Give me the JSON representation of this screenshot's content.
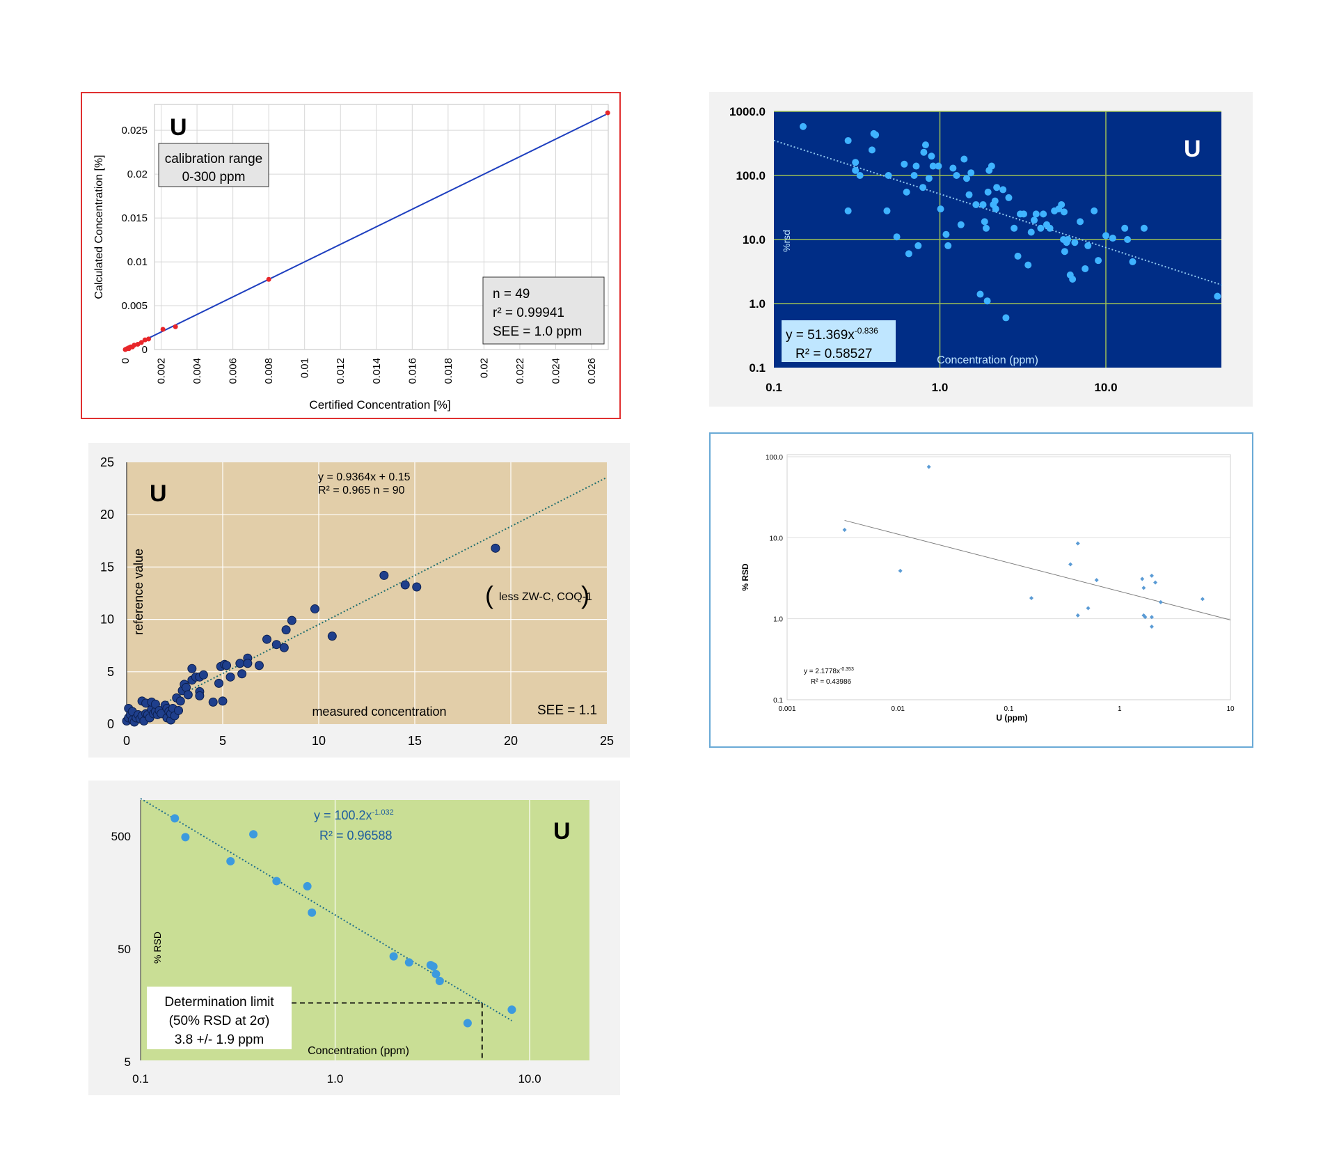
{
  "chart_data": [
    {
      "id": "calibration",
      "type": "scatter",
      "element": "U",
      "xlabel": "Certified Concentration [%]",
      "ylabel": "Calculated Concentration [%]",
      "xlim": [
        0,
        0.027
      ],
      "ylim": [
        0,
        0.027
      ],
      "x_ticks": [
        "0",
        "0.002",
        "0.004",
        "0.006",
        "0.008",
        "0.01",
        "0.012",
        "0.014",
        "0.016",
        "0.018",
        "0.02",
        "0.022",
        "0.024",
        "0.026"
      ],
      "y_ticks": [
        "0",
        "0.005",
        "0.01",
        "0.015",
        "0.02",
        "0.025"
      ],
      "annotation_range": [
        "calibration range",
        "0-300 ppm"
      ],
      "stats": [
        "n = 49",
        "r² = 0.99941",
        "SEE = 1.0 ppm"
      ],
      "line": [
        [
          0,
          0
        ],
        [
          0.0268,
          0.0268
        ]
      ],
      "points": [
        [
          0.0,
          0.0
        ],
        [
          0.0001,
          0.0001
        ],
        [
          0.0002,
          0.0001
        ],
        [
          0.0002,
          0.0002
        ],
        [
          0.0003,
          0.0003
        ],
        [
          0.0004,
          0.0003
        ],
        [
          0.0005,
          0.0005
        ],
        [
          0.0007,
          0.0006
        ],
        [
          0.0009,
          0.0008
        ],
        [
          0.0011,
          0.0011
        ],
        [
          0.0013,
          0.0012
        ],
        [
          0.0021,
          0.0023
        ],
        [
          0.0028,
          0.0026
        ],
        [
          0.008,
          0.008
        ],
        [
          0.0269,
          0.027
        ]
      ],
      "colors": {
        "points": "#e8262a",
        "line": "#1e3fbf",
        "border": "#e03030"
      }
    },
    {
      "id": "rsd-blue",
      "type": "scatter",
      "element": "U",
      "xlabel": "Concentration (ppm)",
      "ylabel": "%rsd",
      "x_scale": "log",
      "y_scale": "log",
      "xlim": [
        0.1,
        50
      ],
      "ylim": [
        0.1,
        1000
      ],
      "x_ticks": [
        "0.1",
        "1.0",
        "10.0"
      ],
      "y_ticks": [
        "0.1",
        "1.0",
        "10.0",
        "100.0",
        "1000.0"
      ],
      "trend": {
        "a": 51.369,
        "b": -0.836
      },
      "equation_main": "y = 51.369x",
      "equation_exp": "-0.836",
      "r2": "R² = 0.58527",
      "points": [
        [
          0.15,
          580
        ],
        [
          0.28,
          350
        ],
        [
          0.28,
          28
        ],
        [
          0.31,
          160
        ],
        [
          0.31,
          120
        ],
        [
          0.33,
          100
        ],
        [
          0.39,
          250
        ],
        [
          0.4,
          450
        ],
        [
          0.41,
          430
        ],
        [
          0.48,
          28
        ],
        [
          0.49,
          100
        ],
        [
          0.55,
          11
        ],
        [
          0.61,
          150
        ],
        [
          0.63,
          55
        ],
        [
          0.65,
          6
        ],
        [
          0.7,
          100
        ],
        [
          0.72,
          140
        ],
        [
          0.74,
          8
        ],
        [
          0.79,
          65
        ],
        [
          0.8,
          230
        ],
        [
          0.82,
          300
        ],
        [
          0.86,
          90
        ],
        [
          0.89,
          200
        ],
        [
          0.91,
          140
        ],
        [
          0.98,
          140
        ],
        [
          1.01,
          30
        ],
        [
          1.09,
          12
        ],
        [
          1.12,
          8
        ],
        [
          1.2,
          130
        ],
        [
          1.26,
          100
        ],
        [
          1.34,
          17
        ],
        [
          1.4,
          180
        ],
        [
          1.45,
          90
        ],
        [
          1.5,
          50
        ],
        [
          1.54,
          110
        ],
        [
          1.65,
          35
        ],
        [
          1.75,
          1.4
        ],
        [
          1.82,
          35
        ],
        [
          1.86,
          19
        ],
        [
          1.9,
          15
        ],
        [
          1.93,
          1.1
        ],
        [
          1.95,
          55
        ],
        [
          1.98,
          120
        ],
        [
          2.05,
          140
        ],
        [
          2.1,
          35
        ],
        [
          2.15,
          40
        ],
        [
          2.17,
          30
        ],
        [
          2.2,
          65
        ],
        [
          2.4,
          60
        ],
        [
          2.5,
          0.6
        ],
        [
          2.6,
          45
        ],
        [
          2.8,
          15
        ],
        [
          2.95,
          5.5
        ],
        [
          3.05,
          25
        ],
        [
          3.2,
          25
        ],
        [
          3.4,
          4
        ],
        [
          3.55,
          13
        ],
        [
          3.7,
          20
        ],
        [
          3.8,
          25
        ],
        [
          4.05,
          15
        ],
        [
          4.2,
          25
        ],
        [
          4.4,
          17
        ],
        [
          4.6,
          15
        ],
        [
          4.9,
          28
        ],
        [
          5.2,
          30
        ],
        [
          5.4,
          35
        ],
        [
          5.55,
          10
        ],
        [
          5.6,
          27
        ],
        [
          5.65,
          6.5
        ],
        [
          5.8,
          9
        ],
        [
          5.9,
          10
        ],
        [
          6.1,
          2.8
        ],
        [
          6.3,
          2.4
        ],
        [
          6.5,
          9
        ],
        [
          7.0,
          19
        ],
        [
          7.5,
          3.5
        ],
        [
          7.8,
          8
        ],
        [
          8.5,
          28
        ],
        [
          9.0,
          4.7
        ],
        [
          10.0,
          11.5
        ],
        [
          11.0,
          10.5
        ],
        [
          13.0,
          15
        ],
        [
          13.5,
          10
        ],
        [
          14.5,
          4.5
        ],
        [
          17.0,
          15
        ],
        [
          47.0,
          1.3
        ]
      ],
      "colors": {
        "background": "#002d86",
        "points": "#3fb3ff",
        "grid": "#9cbe55",
        "trend": "#8fc8f0",
        "label_box": "#bfe6ff"
      }
    },
    {
      "id": "ref-vs-measured",
      "type": "scatter",
      "element": "U",
      "xlabel": "measured concentration",
      "ylabel": "reference value",
      "xlim": [
        0,
        25
      ],
      "ylim": [
        0,
        25
      ],
      "x_ticks": [
        "0",
        "5",
        "10",
        "15",
        "20",
        "25"
      ],
      "y_ticks": [
        "0",
        "5",
        "10",
        "15",
        "20",
        "25"
      ],
      "trend": {
        "slope": 0.9364,
        "intercept": 0.15
      },
      "equation": "y = 0.9364x + 0.15",
      "r2_n": "R² = 0.965   n = 90",
      "note": "less ZW-C, COQ-1",
      "see": "SEE = 1.1",
      "points": [
        [
          0.0,
          0.3
        ],
        [
          0.1,
          0.6
        ],
        [
          0.1,
          1.5
        ],
        [
          0.2,
          0.9
        ],
        [
          0.3,
          0.4
        ],
        [
          0.3,
          1.2
        ],
        [
          0.4,
          0.2
        ],
        [
          0.5,
          0.6
        ],
        [
          0.6,
          0.9
        ],
        [
          0.7,
          0.5
        ],
        [
          0.8,
          0.8
        ],
        [
          0.8,
          2.2
        ],
        [
          0.9,
          0.3
        ],
        [
          1.0,
          1.0
        ],
        [
          1.0,
          2.0
        ],
        [
          1.1,
          0.9
        ],
        [
          1.2,
          0.6
        ],
        [
          1.3,
          1.4
        ],
        [
          1.3,
          2.1
        ],
        [
          1.4,
          1.0
        ],
        [
          1.5,
          1.2
        ],
        [
          1.5,
          1.9
        ],
        [
          1.6,
          0.9
        ],
        [
          1.7,
          1.3
        ],
        [
          1.8,
          1.0
        ],
        [
          2.0,
          1.8
        ],
        [
          2.1,
          0.6
        ],
        [
          2.1,
          1.5
        ],
        [
          2.2,
          1.2
        ],
        [
          2.3,
          0.4
        ],
        [
          2.3,
          1.0
        ],
        [
          2.4,
          1.5
        ],
        [
          2.5,
          0.8
        ],
        [
          2.6,
          2.5
        ],
        [
          2.7,
          1.3
        ],
        [
          2.8,
          2.2
        ],
        [
          2.9,
          3.2
        ],
        [
          3.0,
          3.8
        ],
        [
          3.1,
          3.5
        ],
        [
          3.2,
          2.8
        ],
        [
          3.4,
          4.2
        ],
        [
          3.4,
          5.3
        ],
        [
          3.6,
          4.5
        ],
        [
          3.8,
          4.5
        ],
        [
          3.8,
          3.1
        ],
        [
          3.8,
          2.7
        ],
        [
          4.0,
          4.7
        ],
        [
          4.5,
          2.1
        ],
        [
          4.8,
          3.9
        ],
        [
          4.9,
          5.5
        ],
        [
          5.0,
          2.2
        ],
        [
          5.1,
          5.7
        ],
        [
          5.2,
          5.6
        ],
        [
          5.4,
          4.5
        ],
        [
          5.9,
          5.8
        ],
        [
          6.0,
          4.8
        ],
        [
          6.3,
          6.3
        ],
        [
          6.3,
          5.8
        ],
        [
          6.9,
          5.6
        ],
        [
          7.3,
          8.1
        ],
        [
          7.8,
          7.6
        ],
        [
          8.2,
          7.3
        ],
        [
          8.3,
          9.0
        ],
        [
          8.6,
          9.9
        ],
        [
          9.8,
          11.0
        ],
        [
          10.7,
          8.4
        ],
        [
          13.4,
          14.2
        ],
        [
          14.5,
          13.3
        ],
        [
          15.1,
          13.1
        ],
        [
          19.2,
          16.8
        ]
      ],
      "colors": {
        "background": "#e2cea9",
        "points": "#1f3f8c",
        "trend": "#1f6e6e"
      }
    },
    {
      "id": "rsd-white",
      "type": "scatter",
      "xlabel": "U (ppm)",
      "ylabel": "% RSD",
      "x_scale": "log",
      "y_scale": "log",
      "xlim": [
        0.001,
        10
      ],
      "ylim": [
        0.1,
        100
      ],
      "x_ticks": [
        "0.001",
        "0.01",
        "0.1",
        "1",
        "10"
      ],
      "y_ticks": [
        "0.1",
        "1.0",
        "10.0",
        "100.0"
      ],
      "trend": {
        "a": 2.1778,
        "b": -0.353
      },
      "equation_main": "y = 2.1778x",
      "equation_exp": "-0.353",
      "r2": "R² = 0.43986",
      "points": [
        [
          0.0033,
          12.5
        ],
        [
          0.0105,
          3.9
        ],
        [
          0.019,
          75
        ],
        [
          0.16,
          1.8
        ],
        [
          0.36,
          4.7
        ],
        [
          0.42,
          8.5
        ],
        [
          0.42,
          1.1
        ],
        [
          0.52,
          1.35
        ],
        [
          0.62,
          3.0
        ],
        [
          1.6,
          3.1
        ],
        [
          1.65,
          2.4
        ],
        [
          1.65,
          1.1
        ],
        [
          1.7,
          1.05
        ],
        [
          1.95,
          3.4
        ],
        [
          1.95,
          1.05
        ],
        [
          1.95,
          0.8
        ],
        [
          2.1,
          2.8
        ],
        [
          2.35,
          1.6
        ],
        [
          5.6,
          1.75
        ]
      ],
      "colors": {
        "border": "#6aaad6",
        "points": "#5a9bd5",
        "trend": "#7f7f7f"
      }
    },
    {
      "id": "rsd-green",
      "type": "scatter",
      "element": "U",
      "xlabel": "Concentration (ppm)",
      "ylabel": "% RSD",
      "x_scale": "log",
      "y_scale": "log",
      "xlim": [
        0.1,
        20
      ],
      "ylim": [
        5,
        1000
      ],
      "x_ticks": [
        "0.1",
        "1.0",
        "10.0"
      ],
      "y_ticks": [
        "5",
        "50",
        "500"
      ],
      "trend": {
        "a": 100.2,
        "b": -1.032
      },
      "equation_main": "y = 100.2x",
      "equation_exp": "-1.032",
      "r2": "R² = 0.96588",
      "limit_lines": [
        "Determination limit",
        "(50% RSD at 2σ)",
        "3.8 +/- 1.9 ppm"
      ],
      "points": [
        [
          0.15,
          720
        ],
        [
          0.17,
          490
        ],
        [
          0.29,
          300
        ],
        [
          0.38,
          520
        ],
        [
          0.5,
          200
        ],
        [
          0.72,
          180
        ],
        [
          0.76,
          105
        ],
        [
          2.0,
          43
        ],
        [
          2.4,
          38
        ],
        [
          3.1,
          36
        ],
        [
          3.2,
          35
        ],
        [
          3.3,
          30
        ],
        [
          3.45,
          26
        ],
        [
          4.8,
          11
        ],
        [
          8.1,
          14.5
        ]
      ],
      "colors": {
        "background": "#c9de95",
        "points": "#3c9ade",
        "trend": "#1f6e8c",
        "label": "#1f5e9e"
      }
    }
  ]
}
